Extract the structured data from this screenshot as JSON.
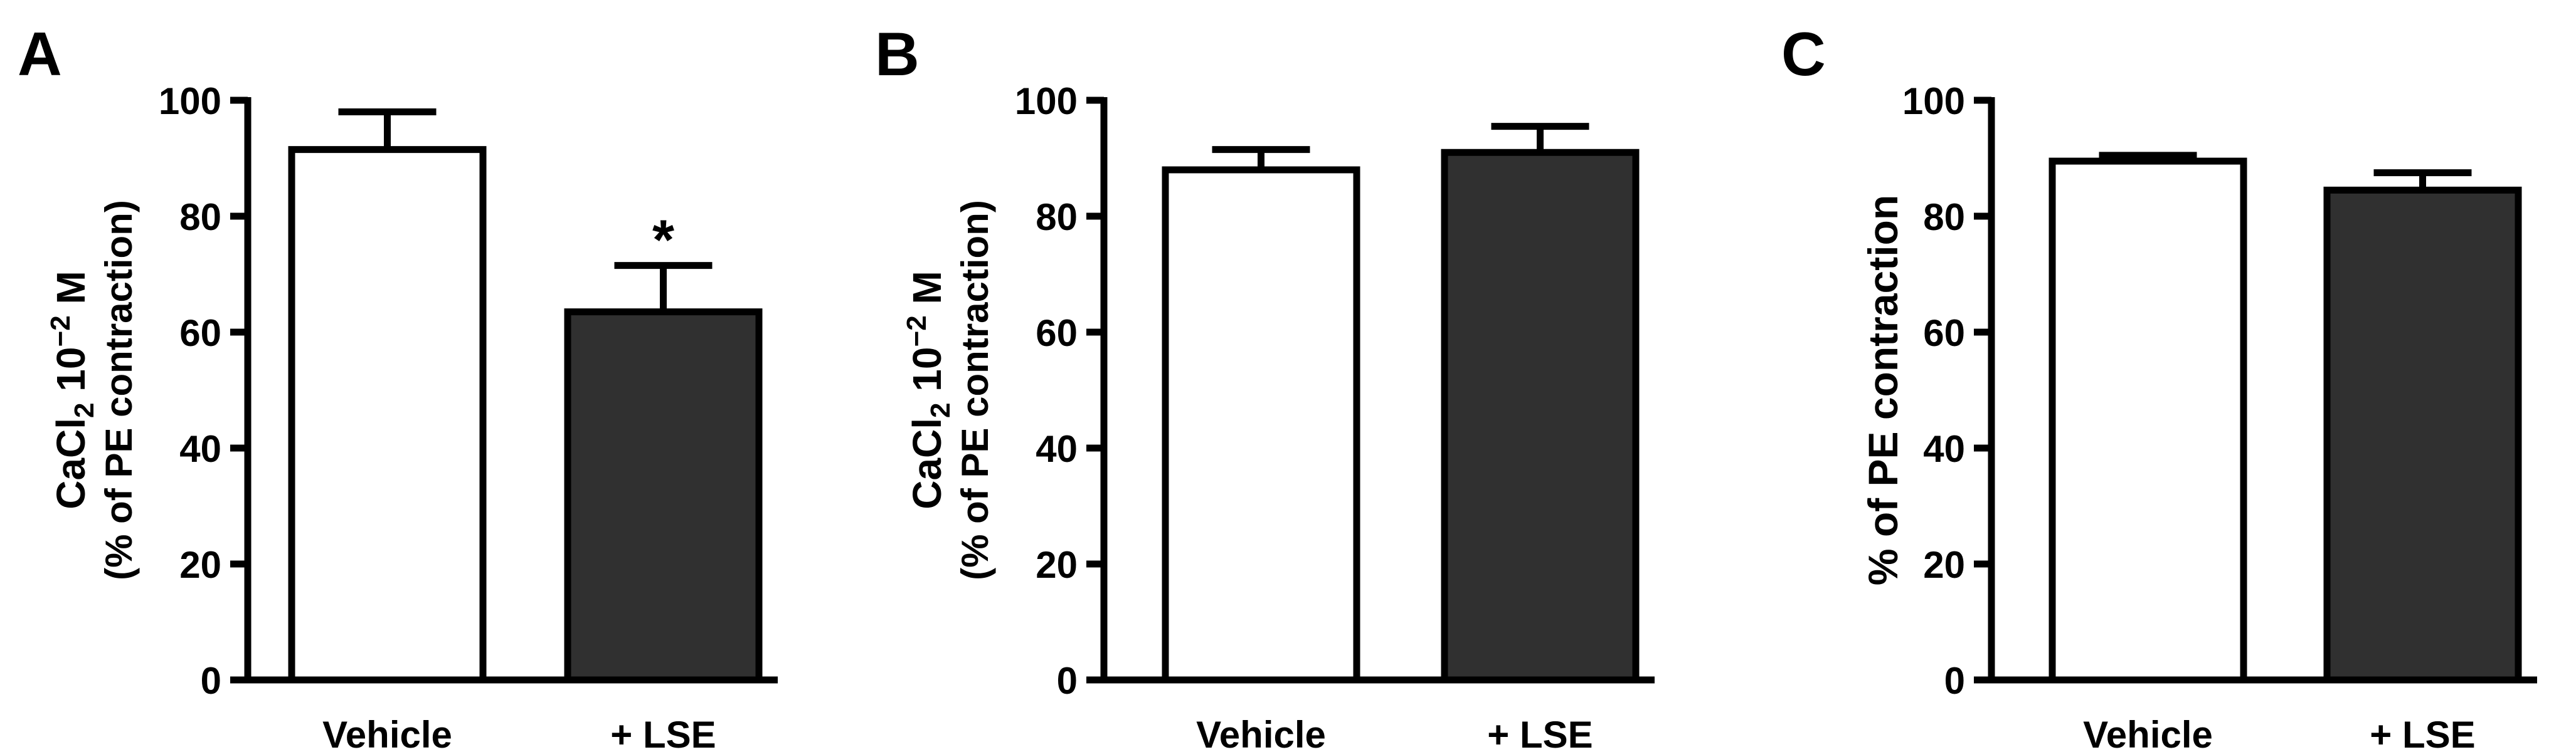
{
  "colors": {
    "vehicle_fill": "#ffffff",
    "lse_fill": "#303030",
    "stroke": "#000000"
  },
  "chart_data": [
    {
      "panel": "A",
      "type": "bar",
      "categories": [
        "Vehicle",
        "+ LSE"
      ],
      "values": [
        91.5,
        63.5
      ],
      "errors": [
        6.5,
        8.0
      ],
      "annotations": [
        "",
        "*"
      ],
      "ylabel_line1_main": "CaCl",
      "ylabel_line1_sub": "2",
      "ylabel_line1_rest": " 10",
      "ylabel_line1_sup": "−2",
      "ylabel_line1_unit": " M",
      "ylabel_line2": "(% of  PE  contraction)",
      "ylim": [
        0,
        100
      ],
      "yticks": [
        "0",
        "20",
        "40",
        "60",
        "80",
        "100"
      ],
      "grid": false
    },
    {
      "panel": "B",
      "type": "bar",
      "categories": [
        "Vehicle",
        "+ LSE"
      ],
      "values": [
        88.0,
        91.0
      ],
      "errors": [
        3.5,
        4.5
      ],
      "annotations": [
        "",
        ""
      ],
      "ylabel_line1_main": "CaCl",
      "ylabel_line1_sub": "2",
      "ylabel_line1_rest": " 10",
      "ylabel_line1_sup": "−2",
      "ylabel_line1_unit": " M",
      "ylabel_line2": "(% of  PE  contraction)",
      "ylim": [
        0,
        100
      ],
      "yticks": [
        "0",
        "20",
        "40",
        "60",
        "80",
        "100"
      ],
      "grid": false
    },
    {
      "panel": "C",
      "type": "bar",
      "categories": [
        "Vehicle",
        "+ LSE"
      ],
      "values": [
        89.5,
        84.5
      ],
      "errors": [
        1.0,
        3.0
      ],
      "annotations": [
        "",
        ""
      ],
      "ylabel": "% of  PE  contraction",
      "ylim": [
        0,
        100
      ],
      "yticks": [
        "0",
        "20",
        "40",
        "60",
        "80",
        "100"
      ],
      "grid": false
    }
  ]
}
